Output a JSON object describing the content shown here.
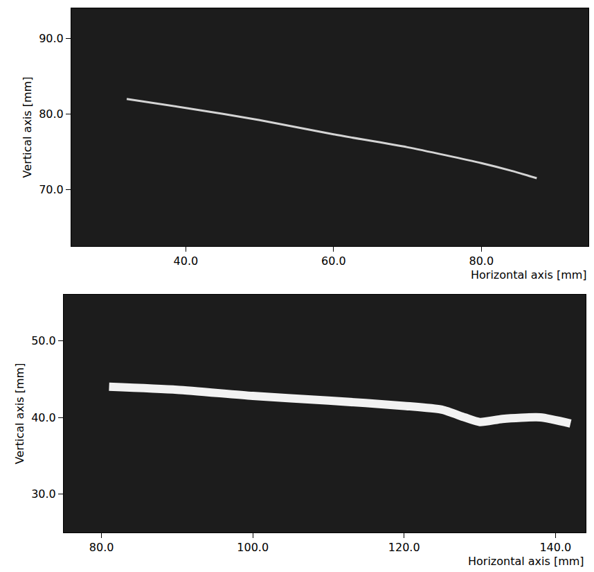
{
  "chart_data": [
    {
      "type": "line",
      "x_label": "Horizontal axis [mm]",
      "y_label": "Vertical axis [mm]",
      "x": [
        32,
        40,
        50,
        60,
        70,
        80,
        84,
        87.5
      ],
      "values": [
        82.0,
        80.8,
        79.2,
        77.3,
        75.6,
        73.5,
        72.5,
        71.5
      ],
      "color": "#d4d4d4",
      "xlim": [
        24.5,
        94.5
      ],
      "ylim": [
        62.5,
        94
      ],
      "xticks": [
        {
          "value": 40,
          "label": "40.0"
        },
        {
          "value": 60,
          "label": "60.0"
        },
        {
          "value": 80,
          "label": "80.0"
        }
      ],
      "yticks": [
        {
          "value": 70,
          "label": "70.0"
        },
        {
          "value": 80,
          "label": "80.0"
        },
        {
          "value": 90,
          "label": "90.0"
        }
      ],
      "grid": false
    },
    {
      "type": "line",
      "x_label": "Horizontal axis [mm]",
      "y_label": "Vertical axis [mm]",
      "x": [
        81,
        90,
        100,
        110,
        120,
        125,
        128,
        130,
        133,
        138,
        142
      ],
      "values": [
        44.0,
        43.6,
        42.8,
        42.2,
        41.5,
        41.0,
        40.0,
        39.4,
        39.8,
        40.0,
        39.2
      ],
      "color": "#f2f2f2",
      "xlim": [
        75,
        144
      ],
      "ylim": [
        25,
        56
      ],
      "xticks": [
        {
          "value": 80,
          "label": "80.0"
        },
        {
          "value": 100,
          "label": "100.0"
        },
        {
          "value": 120,
          "label": "120.0"
        },
        {
          "value": 140,
          "label": "140.0"
        }
      ],
      "yticks": [
        {
          "value": 30,
          "label": "30.0"
        },
        {
          "value": 40,
          "label": "40.0"
        },
        {
          "value": 50,
          "label": "50.0"
        }
      ],
      "grid": false
    }
  ]
}
